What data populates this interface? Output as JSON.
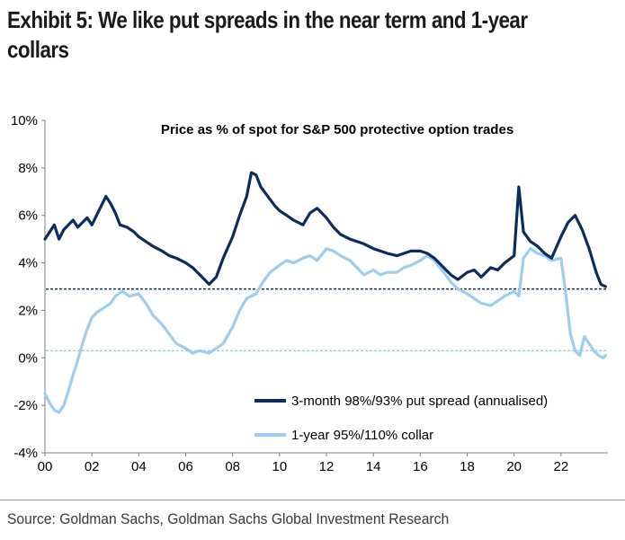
{
  "exhibit": {
    "title_line1": "Exhibit 5: We like put spreads in the near term and 1-year",
    "title_line2": "collars"
  },
  "source": "Source: Goldman Sachs, Goldman Sachs Global Investment Research",
  "chart_data": {
    "type": "line",
    "title": "Price as % of spot for S&P 500 protective option trades",
    "xlabel": "",
    "ylabel": "",
    "xlim": [
      2000,
      2024
    ],
    "ylim": [
      -4,
      10
    ],
    "x_ticks": [
      {
        "value": 2000,
        "label": "00"
      },
      {
        "value": 2002,
        "label": "02"
      },
      {
        "value": 2004,
        "label": "04"
      },
      {
        "value": 2006,
        "label": "06"
      },
      {
        "value": 2008,
        "label": "08"
      },
      {
        "value": 2010,
        "label": "10"
      },
      {
        "value": 2012,
        "label": "12"
      },
      {
        "value": 2014,
        "label": "14"
      },
      {
        "value": 2016,
        "label": "16"
      },
      {
        "value": 2018,
        "label": "18"
      },
      {
        "value": 2020,
        "label": "20"
      },
      {
        "value": 2022,
        "label": "22"
      }
    ],
    "y_ticks": [
      {
        "value": 10,
        "label": "10%"
      },
      {
        "value": 8,
        "label": "8%"
      },
      {
        "value": 6,
        "label": "6%"
      },
      {
        "value": 4,
        "label": "4%"
      },
      {
        "value": 2,
        "label": "2%"
      },
      {
        "value": 0,
        "label": "0%"
      },
      {
        "value": -2,
        "label": "-2%"
      },
      {
        "value": -4,
        "label": "-4%"
      }
    ],
    "grid": false,
    "legend_position": "bottom-right",
    "series": [
      {
        "name": "3-month 98%/93% put spread (annualised)",
        "color": "#0b2d5b",
        "reference_level": 2.9,
        "x": [
          2000.0,
          2000.2,
          2000.4,
          2000.6,
          2000.8,
          2001.0,
          2001.2,
          2001.4,
          2001.6,
          2001.8,
          2002.0,
          2002.2,
          2002.4,
          2002.6,
          2002.8,
          2003.0,
          2003.2,
          2003.5,
          2003.8,
          2004.0,
          2004.3,
          2004.6,
          2005.0,
          2005.3,
          2005.6,
          2006.0,
          2006.3,
          2006.6,
          2007.0,
          2007.3,
          2007.6,
          2008.0,
          2008.3,
          2008.6,
          2008.8,
          2009.0,
          2009.2,
          2009.5,
          2009.8,
          2010.0,
          2010.3,
          2010.6,
          2011.0,
          2011.3,
          2011.6,
          2012.0,
          2012.3,
          2012.6,
          2013.0,
          2013.3,
          2013.6,
          2014.0,
          2014.3,
          2014.6,
          2015.0,
          2015.3,
          2015.6,
          2016.0,
          2016.3,
          2016.6,
          2017.0,
          2017.3,
          2017.6,
          2018.0,
          2018.3,
          2018.6,
          2019.0,
          2019.3,
          2019.6,
          2020.0,
          2020.2,
          2020.4,
          2020.7,
          2021.0,
          2021.3,
          2021.6,
          2022.0,
          2022.3,
          2022.6,
          2022.9,
          2023.2,
          2023.5,
          2023.7,
          2023.9
        ],
        "y": [
          5.0,
          5.3,
          5.6,
          5.0,
          5.4,
          5.6,
          5.8,
          5.5,
          5.7,
          5.9,
          5.6,
          6.0,
          6.4,
          6.8,
          6.5,
          6.1,
          5.6,
          5.5,
          5.3,
          5.1,
          4.9,
          4.7,
          4.5,
          4.3,
          4.2,
          4.0,
          3.8,
          3.5,
          3.1,
          3.4,
          4.2,
          5.1,
          6.0,
          6.8,
          7.8,
          7.7,
          7.2,
          6.8,
          6.4,
          6.2,
          6.0,
          5.8,
          5.6,
          6.1,
          6.3,
          5.9,
          5.5,
          5.2,
          5.0,
          4.9,
          4.8,
          4.6,
          4.5,
          4.4,
          4.3,
          4.4,
          4.5,
          4.5,
          4.4,
          4.2,
          3.8,
          3.5,
          3.3,
          3.6,
          3.7,
          3.4,
          3.8,
          3.7,
          4.0,
          4.3,
          7.2,
          5.3,
          4.9,
          4.7,
          4.4,
          4.2,
          5.1,
          5.7,
          6.0,
          5.4,
          4.6,
          3.6,
          3.1,
          3.0
        ]
      },
      {
        "name": "1-year 95%/110% collar",
        "color": "#9fcdef",
        "reference_level": 0.3,
        "x": [
          2000.0,
          2000.2,
          2000.4,
          2000.6,
          2000.8,
          2001.0,
          2001.2,
          2001.4,
          2001.6,
          2001.8,
          2002.0,
          2002.2,
          2002.5,
          2002.8,
          2003.0,
          2003.3,
          2003.6,
          2004.0,
          2004.3,
          2004.6,
          2005.0,
          2005.3,
          2005.6,
          2006.0,
          2006.3,
          2006.6,
          2007.0,
          2007.3,
          2007.6,
          2008.0,
          2008.3,
          2008.6,
          2009.0,
          2009.3,
          2009.6,
          2010.0,
          2010.3,
          2010.6,
          2011.0,
          2011.3,
          2011.6,
          2012.0,
          2012.3,
          2012.6,
          2013.0,
          2013.3,
          2013.6,
          2014.0,
          2014.3,
          2014.6,
          2015.0,
          2015.3,
          2015.6,
          2016.0,
          2016.3,
          2016.6,
          2017.0,
          2017.3,
          2017.6,
          2018.0,
          2018.3,
          2018.6,
          2019.0,
          2019.3,
          2019.6,
          2020.0,
          2020.2,
          2020.4,
          2020.7,
          2021.0,
          2021.3,
          2021.6,
          2022.0,
          2022.2,
          2022.4,
          2022.6,
          2022.8,
          2023.0,
          2023.2,
          2023.4,
          2023.6,
          2023.8,
          2023.9
        ],
        "y": [
          -1.5,
          -1.9,
          -2.2,
          -2.3,
          -2.0,
          -1.4,
          -0.7,
          -0.1,
          0.6,
          1.2,
          1.7,
          1.9,
          2.1,
          2.3,
          2.6,
          2.8,
          2.6,
          2.7,
          2.3,
          1.8,
          1.4,
          1.0,
          0.6,
          0.4,
          0.2,
          0.3,
          0.2,
          0.4,
          0.6,
          1.3,
          2.0,
          2.5,
          2.7,
          3.2,
          3.6,
          3.9,
          4.1,
          4.0,
          4.2,
          4.3,
          4.1,
          4.6,
          4.5,
          4.3,
          4.1,
          3.8,
          3.5,
          3.7,
          3.5,
          3.6,
          3.6,
          3.8,
          3.9,
          4.1,
          4.3,
          4.1,
          3.6,
          3.2,
          2.9,
          2.7,
          2.5,
          2.3,
          2.2,
          2.4,
          2.6,
          2.8,
          2.6,
          4.2,
          4.6,
          4.4,
          4.3,
          4.1,
          4.2,
          2.7,
          1.0,
          0.3,
          0.1,
          0.9,
          0.6,
          0.3,
          0.1,
          0.0,
          0.1
        ]
      }
    ]
  }
}
